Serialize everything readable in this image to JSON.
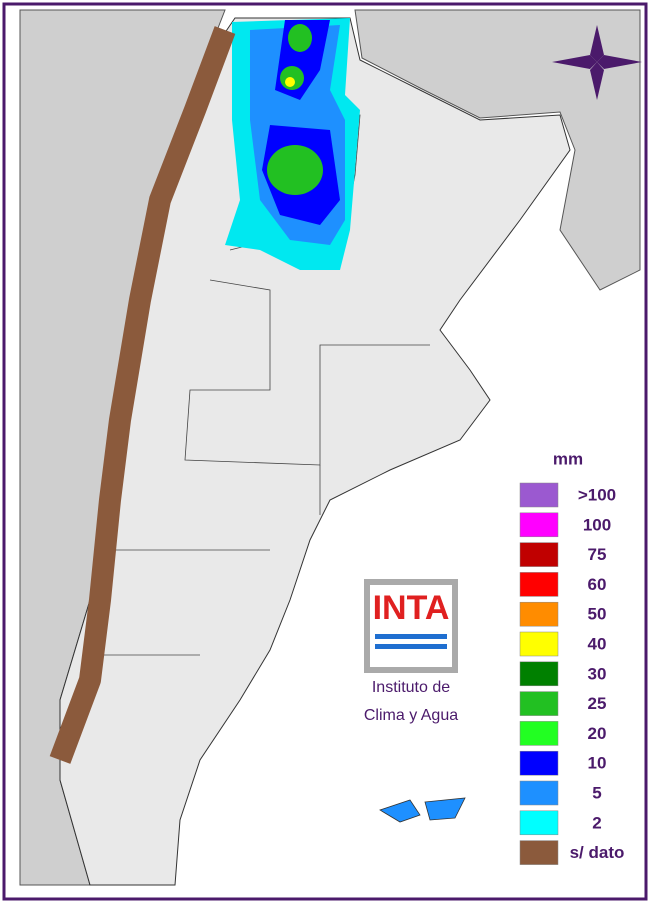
{
  "legend": {
    "unit": "mm",
    "items": [
      {
        "label": ">100",
        "color": "#9b59d0"
      },
      {
        "label": "100",
        "color": "#ff00ff"
      },
      {
        "label": "75",
        "color": "#c00000"
      },
      {
        "label": "60",
        "color": "#ff0000"
      },
      {
        "label": "50",
        "color": "#ff8c00"
      },
      {
        "label": "40",
        "color": "#ffff00"
      },
      {
        "label": "30",
        "color": "#008000"
      },
      {
        "label": "25",
        "color": "#22c022"
      },
      {
        "label": "20",
        "color": "#22ff22"
      },
      {
        "label": "10",
        "color": "#0000ff"
      },
      {
        "label": "5",
        "color": "#1e90ff"
      },
      {
        "label": "2",
        "color": "#00ffff"
      },
      {
        "label": "s/ dato",
        "color": "#8b5a3c"
      }
    ]
  },
  "logo": {
    "acronym": "INTA",
    "line1": "Instituto de",
    "line2": "Clima y Agua"
  }
}
